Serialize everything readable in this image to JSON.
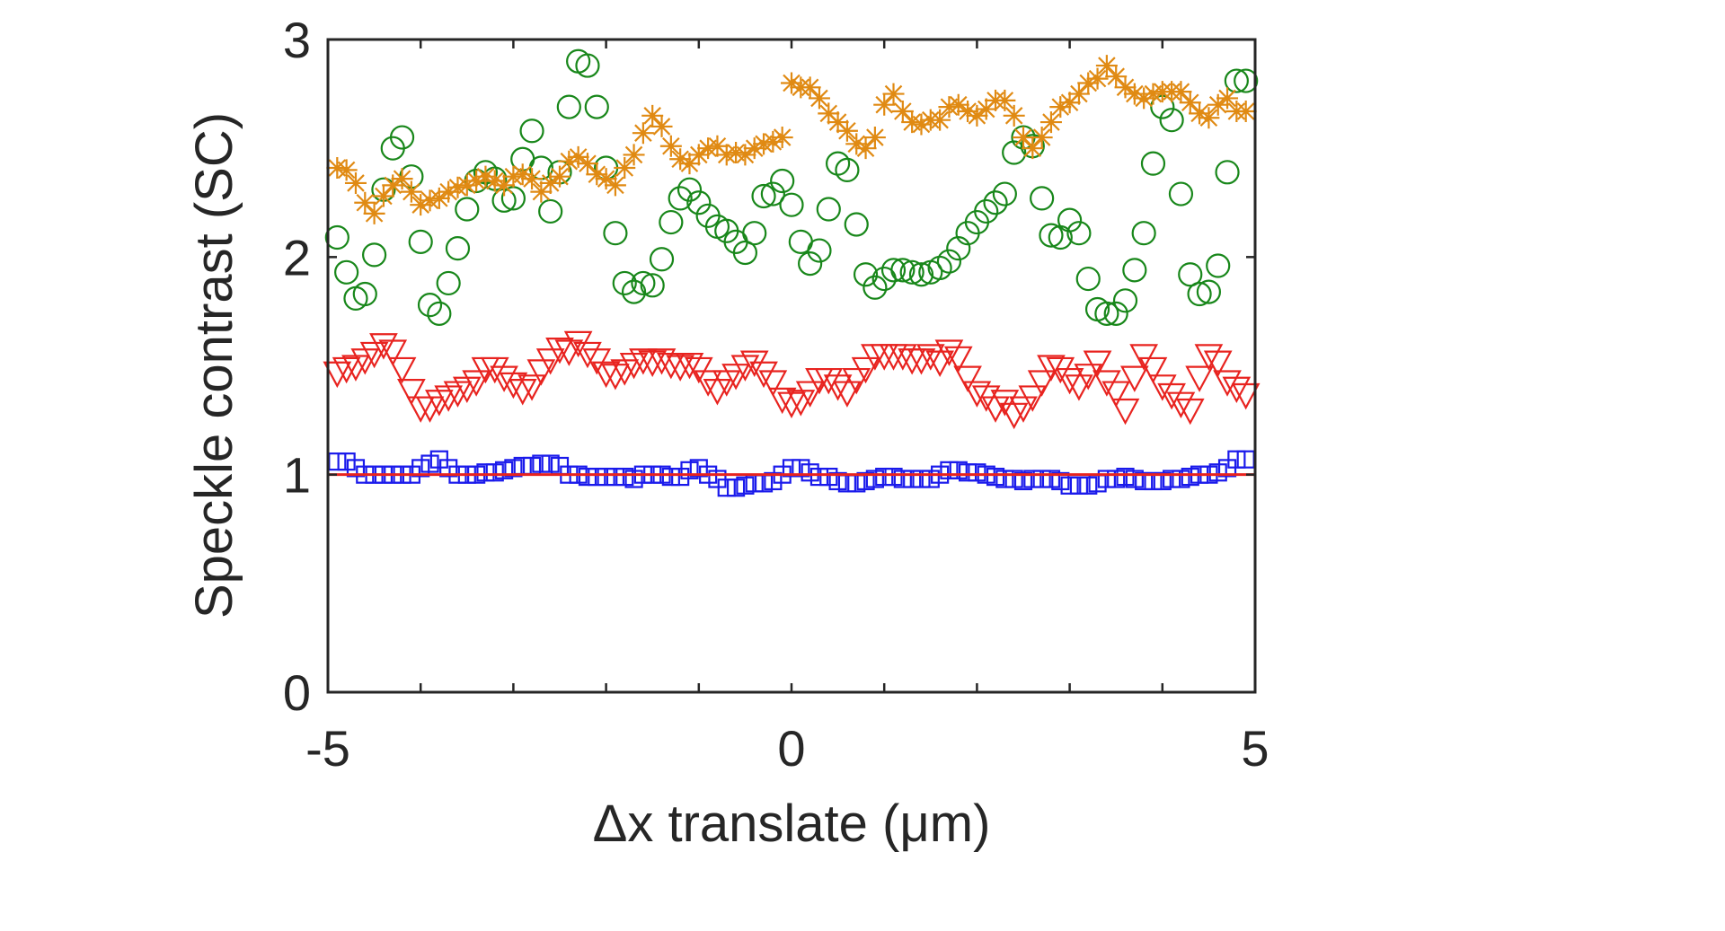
{
  "chart_data": {
    "type": "scatter",
    "title": "",
    "xlabel": "Δx translate (μm)",
    "ylabel": "Speckle contrast (SC)",
    "xlim": [
      -5,
      5
    ],
    "ylim": [
      0,
      3
    ],
    "xticks": [
      -5,
      -4,
      -3,
      -2,
      -1,
      0,
      1,
      2,
      3,
      4,
      5
    ],
    "xtick_labels": [
      "-5",
      "",
      "",
      "",
      "",
      "0",
      "",
      "",
      "",
      "",
      "5"
    ],
    "yticks": [
      0,
      1,
      2,
      3
    ],
    "ytick_labels": [
      "0",
      "1",
      "2",
      "3"
    ],
    "grid": false,
    "reference_line": {
      "y": 1,
      "color": "#e8231f"
    },
    "series": [
      {
        "name": "squares",
        "marker": "square",
        "color": "#1a1aeb",
        "x": [
          -4.9,
          -4.8,
          -4.7,
          -4.6,
          -4.5,
          -4.4,
          -4.3,
          -4.2,
          -4.1,
          -4.0,
          -3.9,
          -3.8,
          -3.7,
          -3.6,
          -3.5,
          -3.4,
          -3.3,
          -3.2,
          -3.1,
          -3.0,
          -2.9,
          -2.8,
          -2.7,
          -2.6,
          -2.5,
          -2.4,
          -2.3,
          -2.2,
          -2.1,
          -2.0,
          -1.9,
          -1.8,
          -1.7,
          -1.6,
          -1.5,
          -1.4,
          -1.3,
          -1.2,
          -1.1,
          -1.0,
          -0.9,
          -0.8,
          -0.7,
          -0.6,
          -0.5,
          -0.4,
          -0.3,
          -0.2,
          -0.1,
          0.0,
          0.1,
          0.2,
          0.3,
          0.4,
          0.5,
          0.6,
          0.7,
          0.8,
          0.9,
          1.0,
          1.1,
          1.2,
          1.3,
          1.4,
          1.5,
          1.6,
          1.7,
          1.8,
          1.9,
          2.0,
          2.1,
          2.2,
          2.3,
          2.4,
          2.5,
          2.6,
          2.7,
          2.8,
          2.9,
          3.0,
          3.1,
          3.2,
          3.3,
          3.4,
          3.5,
          3.6,
          3.7,
          3.8,
          3.9,
          4.0,
          4.1,
          4.2,
          4.3,
          4.4,
          4.5,
          4.6,
          4.7,
          4.8,
          4.9
        ],
        "y": [
          1.06,
          1.06,
          1.03,
          1.0,
          1.0,
          1.0,
          1.0,
          1.0,
          1.0,
          1.03,
          1.05,
          1.07,
          1.03,
          1.0,
          1.0,
          1.0,
          1.01,
          1.01,
          1.02,
          1.03,
          1.04,
          1.04,
          1.05,
          1.05,
          1.04,
          1.0,
          1.0,
          0.99,
          0.99,
          0.99,
          0.99,
          0.99,
          0.98,
          1.0,
          1.0,
          1.0,
          0.99,
          0.99,
          1.02,
          1.03,
          1.0,
          0.98,
          0.94,
          0.94,
          0.95,
          0.96,
          0.96,
          0.97,
          1.0,
          1.03,
          1.03,
          1.01,
          0.99,
          0.99,
          0.97,
          0.96,
          0.96,
          0.97,
          0.98,
          0.99,
          0.99,
          0.98,
          0.98,
          0.98,
          0.98,
          1.0,
          1.02,
          1.02,
          1.01,
          1.01,
          1.0,
          0.99,
          0.98,
          0.98,
          0.97,
          0.98,
          0.98,
          0.98,
          0.97,
          0.95,
          0.95,
          0.95,
          0.96,
          0.98,
          0.98,
          0.99,
          0.98,
          0.97,
          0.97,
          0.97,
          0.98,
          0.98,
          0.99,
          1.0,
          1.0,
          1.01,
          1.03,
          1.07,
          1.07
        ]
      },
      {
        "name": "triangles",
        "marker": "triangle-down",
        "color": "#e8231f",
        "x": [
          -4.9,
          -4.8,
          -4.7,
          -4.6,
          -4.5,
          -4.4,
          -4.3,
          -4.2,
          -4.1,
          -4.0,
          -3.9,
          -3.8,
          -3.7,
          -3.6,
          -3.5,
          -3.4,
          -3.3,
          -3.2,
          -3.1,
          -3.0,
          -2.9,
          -2.8,
          -2.7,
          -2.6,
          -2.5,
          -2.4,
          -2.3,
          -2.2,
          -2.1,
          -2.0,
          -1.9,
          -1.8,
          -1.7,
          -1.6,
          -1.5,
          -1.4,
          -1.3,
          -1.2,
          -1.1,
          -1.0,
          -0.9,
          -0.8,
          -0.7,
          -0.6,
          -0.5,
          -0.4,
          -0.3,
          -0.2,
          -0.1,
          0.0,
          0.1,
          0.2,
          0.3,
          0.4,
          0.5,
          0.6,
          0.7,
          0.8,
          0.9,
          1.0,
          1.1,
          1.2,
          1.3,
          1.4,
          1.5,
          1.6,
          1.7,
          1.8,
          1.9,
          2.0,
          2.1,
          2.2,
          2.3,
          2.4,
          2.5,
          2.6,
          2.7,
          2.8,
          2.9,
          3.0,
          3.1,
          3.2,
          3.3,
          3.4,
          3.5,
          3.6,
          3.7,
          3.8,
          3.9,
          4.0,
          4.1,
          4.2,
          4.3,
          4.4,
          4.5,
          4.6,
          4.7,
          4.8,
          4.9
        ],
        "y": [
          1.47,
          1.49,
          1.5,
          1.53,
          1.56,
          1.6,
          1.57,
          1.49,
          1.39,
          1.31,
          1.31,
          1.34,
          1.36,
          1.38,
          1.4,
          1.43,
          1.49,
          1.49,
          1.45,
          1.42,
          1.39,
          1.41,
          1.48,
          1.53,
          1.58,
          1.57,
          1.61,
          1.56,
          1.53,
          1.47,
          1.46,
          1.48,
          1.51,
          1.53,
          1.52,
          1.53,
          1.51,
          1.5,
          1.51,
          1.49,
          1.43,
          1.39,
          1.43,
          1.46,
          1.5,
          1.52,
          1.47,
          1.43,
          1.35,
          1.33,
          1.34,
          1.38,
          1.44,
          1.44,
          1.41,
          1.38,
          1.44,
          1.49,
          1.55,
          1.55,
          1.55,
          1.55,
          1.53,
          1.53,
          1.55,
          1.52,
          1.57,
          1.54,
          1.45,
          1.38,
          1.36,
          1.31,
          1.34,
          1.28,
          1.31,
          1.36,
          1.43,
          1.5,
          1.49,
          1.44,
          1.41,
          1.46,
          1.52,
          1.43,
          1.38,
          1.3,
          1.45,
          1.55,
          1.49,
          1.41,
          1.37,
          1.33,
          1.3,
          1.45,
          1.55,
          1.52,
          1.43,
          1.4,
          1.37
        ]
      },
      {
        "name": "circles",
        "marker": "circle",
        "color": "#18871a",
        "x": [
          -4.9,
          -4.8,
          -4.7,
          -4.6,
          -4.5,
          -4.4,
          -4.3,
          -4.2,
          -4.1,
          -4.0,
          -3.9,
          -3.8,
          -3.7,
          -3.6,
          -3.5,
          -3.4,
          -3.3,
          -3.2,
          -3.1,
          -3.0,
          -2.9,
          -2.8,
          -2.7,
          -2.6,
          -2.5,
          -2.4,
          -2.3,
          -2.2,
          -2.1,
          -2.0,
          -1.9,
          -1.8,
          -1.7,
          -1.6,
          -1.5,
          -1.4,
          -1.3,
          -1.2,
          -1.1,
          -1.0,
          -0.9,
          -0.8,
          -0.7,
          -0.6,
          -0.5,
          -0.4,
          -0.3,
          -0.2,
          -0.1,
          0.0,
          0.1,
          0.2,
          0.3,
          0.4,
          0.5,
          0.6,
          0.7,
          0.8,
          0.9,
          1.0,
          1.1,
          1.2,
          1.3,
          1.4,
          1.5,
          1.6,
          1.7,
          1.8,
          1.9,
          2.0,
          2.1,
          2.2,
          2.3,
          2.4,
          2.5,
          2.6,
          2.7,
          2.8,
          2.9,
          3.0,
          3.1,
          3.2,
          3.3,
          3.4,
          3.5,
          3.6,
          3.7,
          3.8,
          3.9,
          4.0,
          4.1,
          4.2,
          4.3,
          4.4,
          4.5,
          4.6,
          4.7,
          4.8,
          4.9
        ],
        "y": [
          2.09,
          1.93,
          1.81,
          1.83,
          2.01,
          2.31,
          2.5,
          2.55,
          2.37,
          2.07,
          1.78,
          1.74,
          1.88,
          2.04,
          2.22,
          2.35,
          2.39,
          2.36,
          2.26,
          2.27,
          2.45,
          2.58,
          2.41,
          2.21,
          2.39,
          2.69,
          2.9,
          2.88,
          2.69,
          2.41,
          2.11,
          1.88,
          1.84,
          1.88,
          1.87,
          1.99,
          2.16,
          2.27,
          2.31,
          2.25,
          2.19,
          2.14,
          2.12,
          2.07,
          2.02,
          2.11,
          2.28,
          2.29,
          2.35,
          2.24,
          2.07,
          1.97,
          2.03,
          2.22,
          2.43,
          2.4,
          2.15,
          1.92,
          1.86,
          1.9,
          1.94,
          1.94,
          1.93,
          1.92,
          1.93,
          1.95,
          1.98,
          2.04,
          2.11,
          2.16,
          2.21,
          2.25,
          2.29,
          2.48,
          2.55,
          2.51,
          2.27,
          2.1,
          2.09,
          2.17,
          2.11,
          1.9,
          1.76,
          1.74,
          1.74,
          1.8,
          1.94,
          2.11,
          2.43,
          2.69,
          2.63,
          2.29,
          1.92,
          1.83,
          1.84,
          1.96,
          2.39,
          2.81,
          2.81
        ]
      },
      {
        "name": "asterisks",
        "marker": "asterisk",
        "color": "#e08a13",
        "x": [
          -4.9,
          -4.8,
          -4.7,
          -4.6,
          -4.5,
          -4.4,
          -4.3,
          -4.2,
          -4.1,
          -4.0,
          -3.9,
          -3.8,
          -3.7,
          -3.6,
          -3.5,
          -3.4,
          -3.3,
          -3.2,
          -3.1,
          -3.0,
          -2.9,
          -2.8,
          -2.7,
          -2.6,
          -2.5,
          -2.4,
          -2.3,
          -2.2,
          -2.1,
          -2.0,
          -1.9,
          -1.8,
          -1.7,
          -1.6,
          -1.5,
          -1.4,
          -1.3,
          -1.2,
          -1.1,
          -1.0,
          -0.9,
          -0.8,
          -0.7,
          -0.6,
          -0.5,
          -0.4,
          -0.3,
          -0.2,
          -0.1,
          0.0,
          0.1,
          0.2,
          0.3,
          0.4,
          0.5,
          0.6,
          0.7,
          0.8,
          0.9,
          1.0,
          1.1,
          1.2,
          1.3,
          1.4,
          1.5,
          1.6,
          1.7,
          1.8,
          1.9,
          2.0,
          2.1,
          2.2,
          2.3,
          2.4,
          2.5,
          2.6,
          2.7,
          2.8,
          2.9,
          3.0,
          3.1,
          3.2,
          3.3,
          3.4,
          3.5,
          3.6,
          3.7,
          3.8,
          3.9,
          4.0,
          4.1,
          4.2,
          4.3,
          4.4,
          4.5,
          4.6,
          4.7,
          4.8,
          4.9
        ],
        "y": [
          2.41,
          2.4,
          2.34,
          2.25,
          2.2,
          2.28,
          2.33,
          2.36,
          2.3,
          2.24,
          2.26,
          2.27,
          2.3,
          2.32,
          2.33,
          2.35,
          2.37,
          2.35,
          2.33,
          2.37,
          2.38,
          2.36,
          2.3,
          2.34,
          2.37,
          2.44,
          2.46,
          2.43,
          2.38,
          2.36,
          2.33,
          2.41,
          2.47,
          2.57,
          2.65,
          2.6,
          2.51,
          2.45,
          2.43,
          2.47,
          2.5,
          2.51,
          2.47,
          2.48,
          2.47,
          2.5,
          2.52,
          2.53,
          2.55,
          2.8,
          2.78,
          2.78,
          2.73,
          2.66,
          2.62,
          2.58,
          2.52,
          2.5,
          2.55,
          2.7,
          2.75,
          2.67,
          2.62,
          2.61,
          2.63,
          2.63,
          2.69,
          2.7,
          2.67,
          2.65,
          2.68,
          2.72,
          2.72,
          2.65,
          2.55,
          2.5,
          2.55,
          2.62,
          2.69,
          2.71,
          2.75,
          2.8,
          2.82,
          2.88,
          2.83,
          2.78,
          2.75,
          2.73,
          2.75,
          2.76,
          2.76,
          2.76,
          2.71,
          2.66,
          2.64,
          2.7,
          2.73,
          2.67,
          2.67
        ]
      }
    ]
  }
}
